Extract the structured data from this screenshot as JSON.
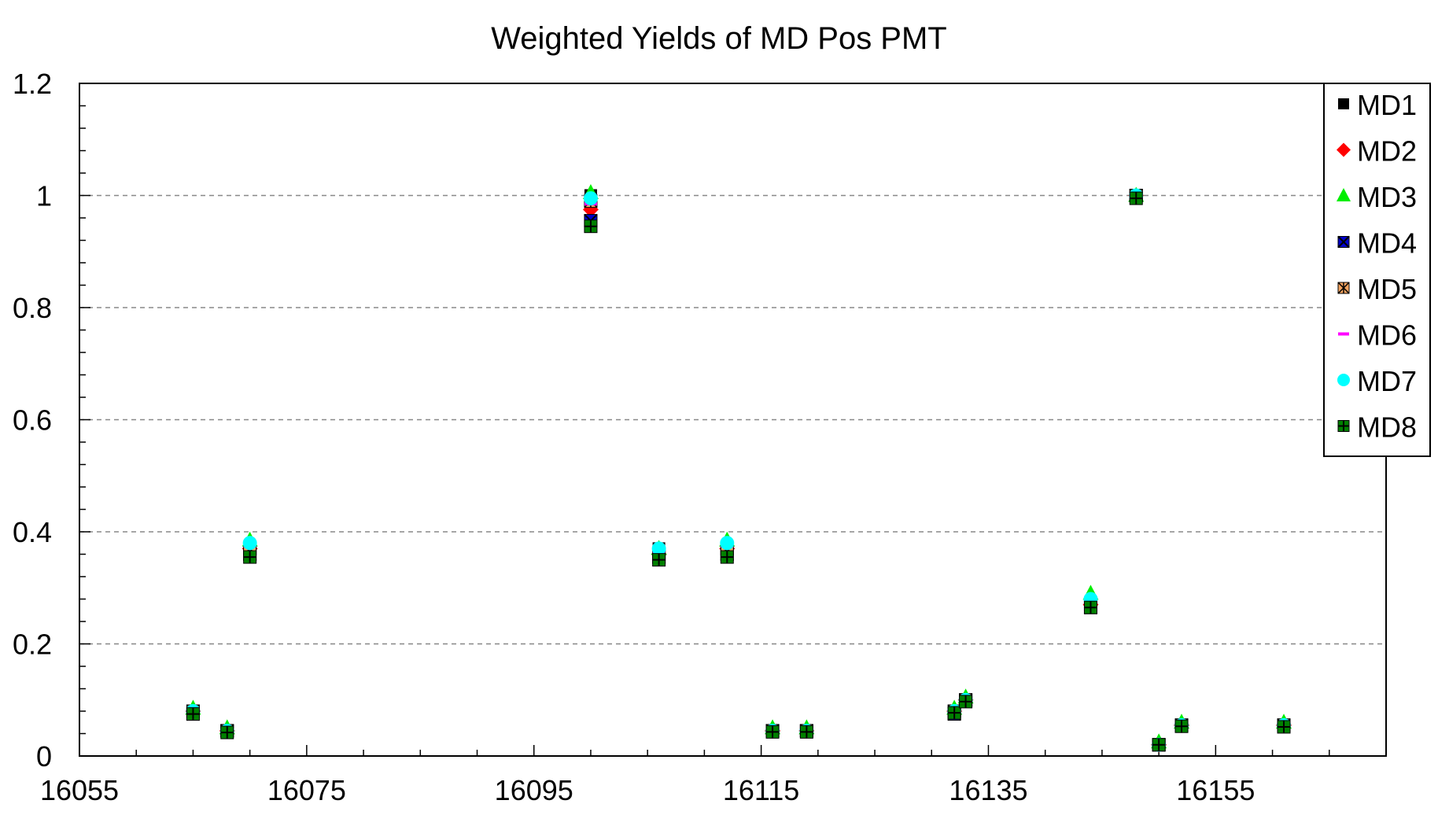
{
  "chart_data": {
    "type": "scatter",
    "title": "Weighted Yields of MD Pos PMT",
    "xlabel": "",
    "ylabel": "",
    "xlim": [
      16055,
      16170
    ],
    "ylim": [
      0,
      1.2
    ],
    "x_ticks": [
      16055,
      16075,
      16095,
      16115,
      16135,
      16155
    ],
    "x_tick_labels": [
      "16055",
      "16075",
      "16095",
      "16115",
      "16135",
      "16155"
    ],
    "y_ticks": [
      0,
      0.2,
      0.4,
      0.6,
      0.8,
      1,
      1.2
    ],
    "y_tick_labels": [
      "0",
      "0.2",
      "0.4",
      "0.6",
      "0.8",
      "1",
      "1.2"
    ],
    "grid": "horizontal-dashed",
    "legend_position": "top-right",
    "x": [
      16065,
      16068,
      16070,
      16100,
      16106,
      16112,
      16116,
      16119,
      16132,
      16133,
      16144,
      16148,
      16150,
      16152,
      16161
    ],
    "series": [
      {
        "name": "MD1",
        "color": "#000000",
        "marker": "square",
        "values": [
          0.08,
          0.045,
          0.37,
          1.0,
          0.37,
          0.37,
          0.045,
          0.045,
          0.08,
          0.1,
          0.27,
          1.0,
          0.02,
          0.055,
          0.055
        ]
      },
      {
        "name": "MD2",
        "color": "#ff0000",
        "marker": "diamond",
        "values": [
          0.08,
          0.045,
          0.37,
          0.975,
          0.36,
          0.37,
          0.045,
          0.045,
          0.08,
          0.1,
          0.27,
          1.0,
          0.02,
          0.055,
          0.055
        ]
      },
      {
        "name": "MD3",
        "color": "#00ee00",
        "marker": "triangle",
        "values": [
          0.085,
          0.05,
          0.385,
          1.005,
          0.37,
          0.385,
          0.05,
          0.05,
          0.085,
          0.105,
          0.29,
          1.0,
          0.025,
          0.06,
          0.06
        ]
      },
      {
        "name": "MD4",
        "color": "#0000cc",
        "marker": "square-x",
        "values": [
          0.075,
          0.045,
          0.36,
          0.955,
          0.355,
          0.36,
          0.045,
          0.045,
          0.075,
          0.1,
          0.265,
          1.0,
          0.02,
          0.055,
          0.055
        ]
      },
      {
        "name": "MD5",
        "color": "#f4a460",
        "marker": "square-star",
        "values": [
          0.08,
          0.045,
          0.37,
          0.99,
          0.36,
          0.37,
          0.045,
          0.045,
          0.08,
          0.1,
          0.27,
          1.0,
          0.02,
          0.055,
          0.055
        ]
      },
      {
        "name": "MD6",
        "color": "#ff00ff",
        "marker": "dash",
        "values": [
          0.08,
          0.045,
          0.375,
          0.985,
          0.365,
          0.375,
          0.045,
          0.045,
          0.08,
          0.1,
          0.275,
          1.0,
          0.02,
          0.055,
          0.055
        ]
      },
      {
        "name": "MD7",
        "color": "#00ffff",
        "marker": "circle",
        "values": [
          0.08,
          0.045,
          0.38,
          0.995,
          0.37,
          0.38,
          0.045,
          0.045,
          0.08,
          0.1,
          0.28,
          1.0,
          0.02,
          0.055,
          0.055
        ]
      },
      {
        "name": "MD8",
        "color": "#008000",
        "marker": "square-plus",
        "values": [
          0.075,
          0.042,
          0.355,
          0.945,
          0.35,
          0.355,
          0.043,
          0.043,
          0.077,
          0.097,
          0.265,
          0.995,
          0.02,
          0.053,
          0.052
        ]
      }
    ]
  }
}
